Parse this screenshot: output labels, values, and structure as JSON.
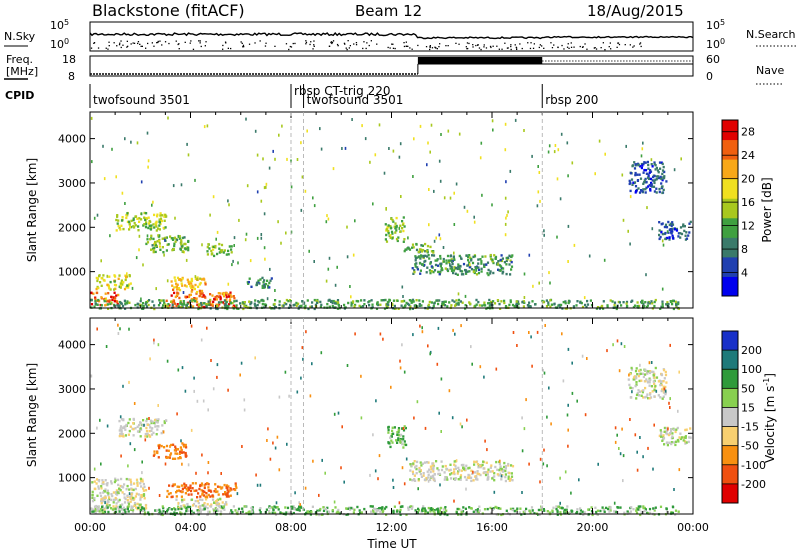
{
  "header": {
    "station": "Blackstone (fitACF)",
    "beam": "Beam 12",
    "date": "18/Aug/2015"
  },
  "left_labels": {
    "nsky": "N.Sky",
    "freq_line1": "Freq.",
    "freq_line2": "[MHz]",
    "cpid": "CPID"
  },
  "right_labels": {
    "nsearch": "N.Search",
    "nave": "Nave"
  },
  "nsky_axis": {
    "top": "10^5",
    "bottom": "10^0"
  },
  "nsearch_axis": {
    "top": "10^5",
    "bottom": "10^0"
  },
  "freq_axis": {
    "top": "18",
    "bottom": "8"
  },
  "nave_axis": {
    "top": "60",
    "bottom": "0"
  },
  "cpid_segments": [
    {
      "label": "twofsound 3501",
      "start_hr": 0.0
    },
    {
      "label": "rbsp CT-trig 220",
      "start_hr": 8.0
    },
    {
      "label": "twofsound 3501",
      "start_hr": 8.5
    },
    {
      "label": "rbsp 200",
      "start_hr": 18.0
    }
  ],
  "chart_data": [
    {
      "type": "heatmap",
      "panel": "power",
      "xlabel": "",
      "ylabel": "Slant Range [km]",
      "x_range_hours": [
        0,
        24
      ],
      "ylim": [
        180,
        4600
      ],
      "yticks": [
        1000,
        2000,
        3000,
        4000
      ],
      "colorbar": {
        "label": "Power [dB]",
        "ticks": [
          4,
          8,
          12,
          16,
          20,
          24,
          28
        ],
        "range": [
          0,
          30
        ],
        "colors": [
          "#0000ee",
          "#2040b0",
          "#3a7a6a",
          "#3fa040",
          "#a8c81e",
          "#f0e020",
          "#f8a818",
          "#f06010",
          "#e00000"
        ]
      },
      "regions": [
        {
          "t0": 0.0,
          "t1": 1.1,
          "r0": 260,
          "r1": 560,
          "level": 26
        },
        {
          "t0": 0.2,
          "t1": 1.6,
          "r0": 620,
          "r1": 960,
          "level": 17
        },
        {
          "t0": 1.0,
          "t1": 3.0,
          "r0": 1950,
          "r1": 2350,
          "level": 15
        },
        {
          "t0": 2.2,
          "t1": 3.9,
          "r0": 1450,
          "r1": 1850,
          "level": 13
        },
        {
          "t0": 3.0,
          "t1": 5.8,
          "r0": 210,
          "r1": 560,
          "level": 25
        },
        {
          "t0": 3.2,
          "t1": 4.6,
          "r0": 560,
          "r1": 900,
          "level": 20
        },
        {
          "t0": 4.6,
          "t1": 5.6,
          "r0": 1380,
          "r1": 1650,
          "level": 14
        },
        {
          "t0": 6.2,
          "t1": 7.2,
          "r0": 650,
          "r1": 900,
          "level": 9
        },
        {
          "t0": 11.7,
          "t1": 12.5,
          "r0": 1700,
          "r1": 2250,
          "level": 14
        },
        {
          "t0": 12.4,
          "t1": 13.7,
          "r0": 1450,
          "r1": 1650,
          "level": 12
        },
        {
          "t0": 12.8,
          "t1": 16.8,
          "r0": 950,
          "r1": 1400,
          "level": 10
        },
        {
          "t0": 21.4,
          "t1": 22.9,
          "r0": 2800,
          "r1": 3500,
          "level": 6
        },
        {
          "t0": 22.6,
          "t1": 23.9,
          "r0": 1750,
          "r1": 2150,
          "level": 6
        },
        {
          "t0": 0.0,
          "t1": 23.4,
          "r0": 185,
          "r1": 390,
          "level": 11
        }
      ]
    },
    {
      "type": "heatmap",
      "panel": "velocity",
      "xlabel": "Time UT",
      "ylabel": "Slant Range [km]",
      "x_range_hours": [
        0,
        24
      ],
      "xticks": [
        "00:00",
        "04:00",
        "08:00",
        "12:00",
        "16:00",
        "20:00",
        "00:00"
      ],
      "ylim": [
        180,
        4600
      ],
      "yticks": [
        1000,
        2000,
        3000,
        4000
      ],
      "colorbar": {
        "label": "Velocity [m s^-1]",
        "ticks": [
          200,
          100,
          50,
          15,
          -15,
          -50,
          -100,
          -200
        ],
        "colors": [
          "#1830c8",
          "#1f7a7a",
          "#2f9a3a",
          "#88d050",
          "#c8c8c8",
          "#f8d070",
          "#f89010",
          "#f05010",
          "#e00000"
        ]
      },
      "regions": [
        {
          "t0": 0.0,
          "t1": 2.2,
          "r0": 300,
          "r1": 1000,
          "vel": 0
        },
        {
          "t0": 1.1,
          "t1": 3.0,
          "r0": 1950,
          "r1": 2350,
          "vel": 0
        },
        {
          "t0": 2.5,
          "t1": 3.8,
          "r0": 1450,
          "r1": 1800,
          "vel": -70
        },
        {
          "t0": 3.0,
          "t1": 5.8,
          "r0": 580,
          "r1": 900,
          "vel": -80
        },
        {
          "t0": 3.4,
          "t1": 5.4,
          "r0": 300,
          "r1": 560,
          "vel": 0
        },
        {
          "t0": 11.8,
          "t1": 12.6,
          "r0": 1700,
          "r1": 2200,
          "vel": 40
        },
        {
          "t0": 12.7,
          "t1": 16.8,
          "r0": 950,
          "r1": 1400,
          "vel": 0
        },
        {
          "t0": 21.4,
          "t1": 22.9,
          "r0": 2800,
          "r1": 3500,
          "vel": 0
        },
        {
          "t0": 22.6,
          "t1": 23.9,
          "r0": 1750,
          "r1": 2150,
          "vel": 0
        },
        {
          "t0": 0.0,
          "t1": 23.4,
          "r0": 185,
          "r1": 380,
          "vel": 30
        }
      ]
    }
  ]
}
